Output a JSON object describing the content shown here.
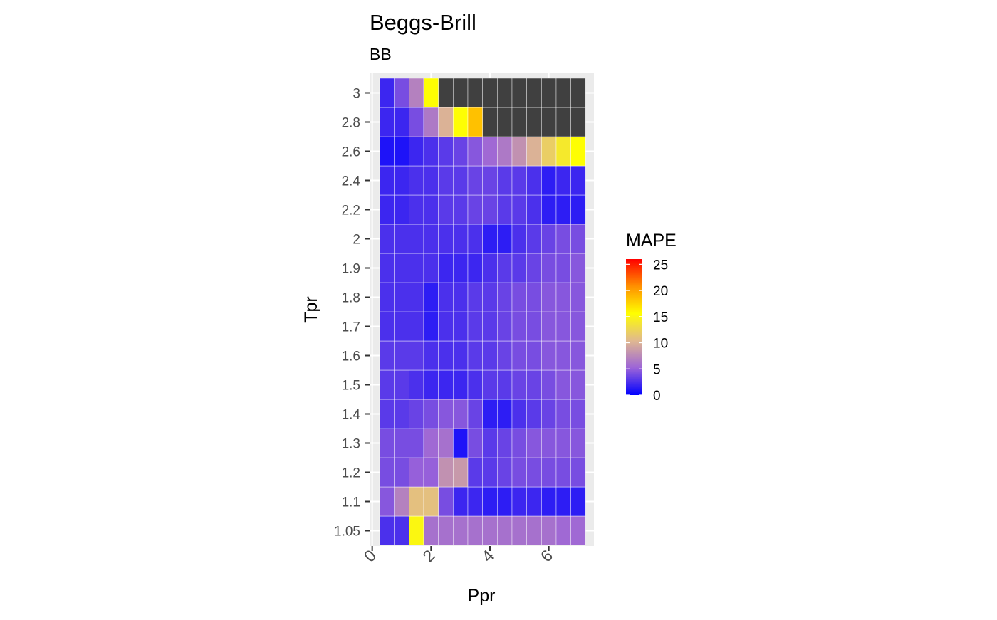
{
  "chart_data": {
    "type": "heatmap",
    "title": "Beggs-Brill",
    "subtitle": "BB",
    "xlabel": "Ppr",
    "ylabel": "Tpr",
    "x_ticks": [
      "0",
      "2",
      "4",
      "6"
    ],
    "x_tick_values": [
      0,
      2,
      4,
      6
    ],
    "xlim": [
      0,
      7.5
    ],
    "y_categories": [
      "1.05",
      "1.1",
      "1.2",
      "1.3",
      "1.4",
      "1.5",
      "1.6",
      "1.7",
      "1.8",
      "1.9",
      "2",
      "2.2",
      "2.4",
      "2.6",
      "2.8",
      "3"
    ],
    "x_centers": [
      0.5,
      1.0,
      1.5,
      2.0,
      2.5,
      3.0,
      3.5,
      4.0,
      4.5,
      5.0,
      5.5,
      6.0,
      6.5,
      7.0
    ],
    "cell_width": 0.5,
    "missing_color": "#404040",
    "grid_color": "#ebebeb",
    "panel_background": "#ebebeb",
    "legend": {
      "title": "MAPE",
      "ticks": [
        "0",
        "5",
        "10",
        "15",
        "20",
        "25"
      ],
      "tick_values": [
        0,
        5,
        10,
        15,
        20,
        25
      ],
      "range": [
        0,
        26
      ],
      "gradient_colors": [
        "#0000ff",
        "#9c64d8",
        "#e0b890",
        "#ffff00",
        "#ff9000",
        "#ff0000"
      ]
    },
    "z": [
      [
        2.5,
        2.5,
        15.0,
        6.0,
        6.0,
        6.0,
        6.0,
        6.0,
        6.0,
        6.0,
        6.0,
        6.0,
        5.5,
        5.5
      ],
      [
        4.5,
        7.0,
        11.0,
        11.0,
        4.0,
        2.0,
        2.0,
        1.5,
        1.5,
        2.0,
        2.0,
        1.5,
        1.5,
        1.5
      ],
      [
        4.0,
        4.0,
        5.0,
        5.0,
        8.0,
        8.5,
        3.0,
        3.0,
        3.5,
        4.0,
        4.0,
        4.0,
        4.0,
        4.0
      ],
      [
        4.0,
        4.0,
        4.0,
        5.5,
        6.0,
        1.0,
        4.0,
        3.0,
        3.5,
        4.0,
        4.5,
        4.5,
        4.5,
        4.5
      ],
      [
        3.0,
        3.0,
        3.5,
        4.0,
        4.5,
        4.5,
        3.5,
        1.5,
        1.5,
        2.5,
        3.0,
        3.5,
        4.0,
        4.0
      ],
      [
        3.0,
        3.0,
        2.5,
        2.0,
        2.0,
        2.0,
        2.5,
        3.0,
        3.0,
        3.5,
        3.5,
        4.0,
        4.5,
        4.5
      ],
      [
        3.0,
        3.0,
        3.0,
        2.5,
        2.5,
        2.5,
        3.0,
        3.0,
        3.5,
        4.0,
        4.0,
        4.5,
        4.5,
        4.5
      ],
      [
        2.5,
        2.5,
        2.5,
        1.5,
        2.5,
        2.5,
        3.0,
        3.0,
        3.5,
        4.0,
        4.0,
        4.5,
        4.5,
        4.5
      ],
      [
        2.5,
        2.5,
        2.5,
        1.5,
        2.5,
        2.5,
        3.0,
        3.0,
        3.5,
        4.0,
        4.0,
        4.5,
        4.5,
        4.5
      ],
      [
        2.5,
        2.5,
        2.5,
        2.5,
        2.0,
        2.0,
        2.0,
        2.5,
        3.0,
        3.0,
        3.5,
        4.0,
        4.0,
        4.5
      ],
      [
        2.5,
        2.5,
        2.5,
        2.5,
        2.5,
        2.5,
        2.5,
        1.5,
        1.5,
        2.5,
        3.0,
        3.5,
        4.0,
        4.0
      ],
      [
        2.0,
        2.0,
        2.5,
        2.5,
        3.0,
        3.0,
        3.5,
        3.5,
        3.0,
        3.0,
        2.5,
        1.5,
        1.5,
        1.5
      ],
      [
        2.0,
        2.0,
        2.5,
        2.5,
        3.0,
        3.0,
        3.5,
        3.5,
        3.0,
        3.0,
        2.5,
        1.5,
        2.0,
        2.0
      ],
      [
        1.0,
        1.0,
        2.0,
        2.5,
        3.0,
        3.5,
        4.5,
        5.5,
        6.5,
        8.0,
        10.0,
        12.0,
        14.0,
        15.5
      ],
      [
        2.0,
        2.0,
        4.0,
        6.5,
        10.0,
        15.5,
        18.5,
        null,
        null,
        null,
        null,
        null,
        null,
        null
      ],
      [
        2.0,
        4.0,
        7.0,
        15.5,
        null,
        null,
        null,
        null,
        null,
        null,
        null,
        null,
        null,
        null
      ]
    ]
  }
}
